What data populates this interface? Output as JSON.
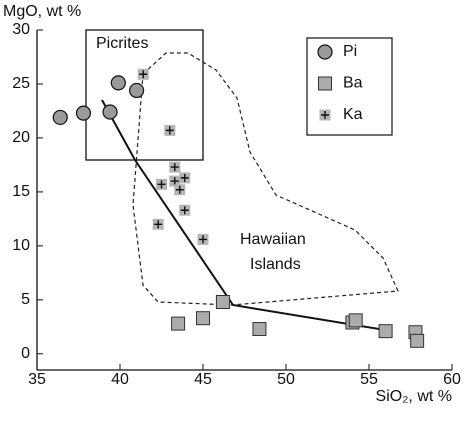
{
  "chart_data": {
    "type": "scatter",
    "xlabel": "SiO₂, wt %",
    "ylabel": "MgO, wt %",
    "xlim": [
      35,
      60
    ],
    "ylim": [
      -1.5,
      30
    ],
    "xticks": [
      35,
      40,
      45,
      50,
      55,
      60
    ],
    "yticks": [
      0,
      5,
      10,
      15,
      20,
      25,
      30
    ],
    "legend": "upper right",
    "annotations": [
      "Picrites",
      "Hawaiian",
      "Islands"
    ],
    "series": [
      {
        "name": "Pi",
        "marker": "circle",
        "color": "#9a9a9a",
        "x": [
          36.4,
          37.8,
          39.4,
          39.9,
          41.0
        ],
        "y": [
          21.9,
          22.3,
          22.4,
          25.1,
          24.4
        ]
      },
      {
        "name": "Ba",
        "marker": "square",
        "color": "#ababab",
        "x": [
          43.5,
          45.0,
          46.2,
          48.4,
          54.0,
          54.2,
          56.0,
          57.8,
          57.9
        ],
        "y": [
          2.8,
          3.3,
          4.8,
          2.3,
          2.9,
          3.1,
          2.1,
          2.0,
          1.2
        ]
      },
      {
        "name": "Ka",
        "marker": "plus-square",
        "color": "#b5b5b5",
        "x": [
          41.4,
          43.0,
          43.3,
          43.3,
          43.9,
          43.6,
          42.5,
          43.9,
          42.3,
          45.0
        ],
        "y": [
          25.9,
          20.7,
          17.3,
          16.0,
          16.3,
          15.2,
          15.7,
          13.3,
          12.0,
          10.6
        ]
      }
    ]
  }
}
